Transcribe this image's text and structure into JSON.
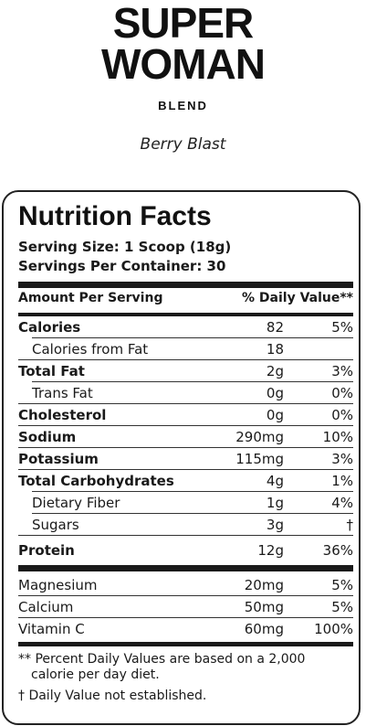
{
  "brand": {
    "line1": "SUPER",
    "line2": "WOMAN",
    "line3": "BLEND"
  },
  "flavor": "Berry Blast",
  "label": {
    "title": "Nutrition Facts",
    "serving_size": "Serving Size: 1 Scoop (18g)",
    "servings_per_container": "Servings Per Container: 30",
    "header_left": "Amount Per Serving",
    "header_right": "% Daily Value**",
    "rows": [
      {
        "name": "Calories",
        "amount": "82",
        "dv": "5%"
      },
      {
        "name": "Calories from Fat",
        "amount": "18",
        "dv": ""
      },
      {
        "name": "Total Fat",
        "amount": "2g",
        "dv": "3%"
      },
      {
        "name": "Trans Fat",
        "amount": "0g",
        "dv": "0%"
      },
      {
        "name": "Cholesterol",
        "amount": "0g",
        "dv": "0%"
      },
      {
        "name": "Sodium",
        "amount": "290mg",
        "dv": "10%"
      },
      {
        "name": "Potassium",
        "amount": "115mg",
        "dv": "3%"
      },
      {
        "name": "Total Carbohydrates",
        "amount": "4g",
        "dv": "1%"
      },
      {
        "name": "Dietary Fiber",
        "amount": "1g",
        "dv": "4%"
      },
      {
        "name": "Sugars",
        "amount": "3g",
        "dv": "†"
      },
      {
        "name": "Protein",
        "amount": "12g",
        "dv": "36%"
      },
      {
        "name": "Magnesium",
        "amount": "20mg",
        "dv": "5%"
      },
      {
        "name": "Calcium",
        "amount": "50mg",
        "dv": "5%"
      },
      {
        "name": "Vitamin C",
        "amount": "60mg",
        "dv": "100%"
      }
    ],
    "footnote1_a": "** Percent Daily Values are based on a 2,000",
    "footnote1_b": "calorie per day diet.",
    "footnote2": "† Daily Value not established."
  }
}
